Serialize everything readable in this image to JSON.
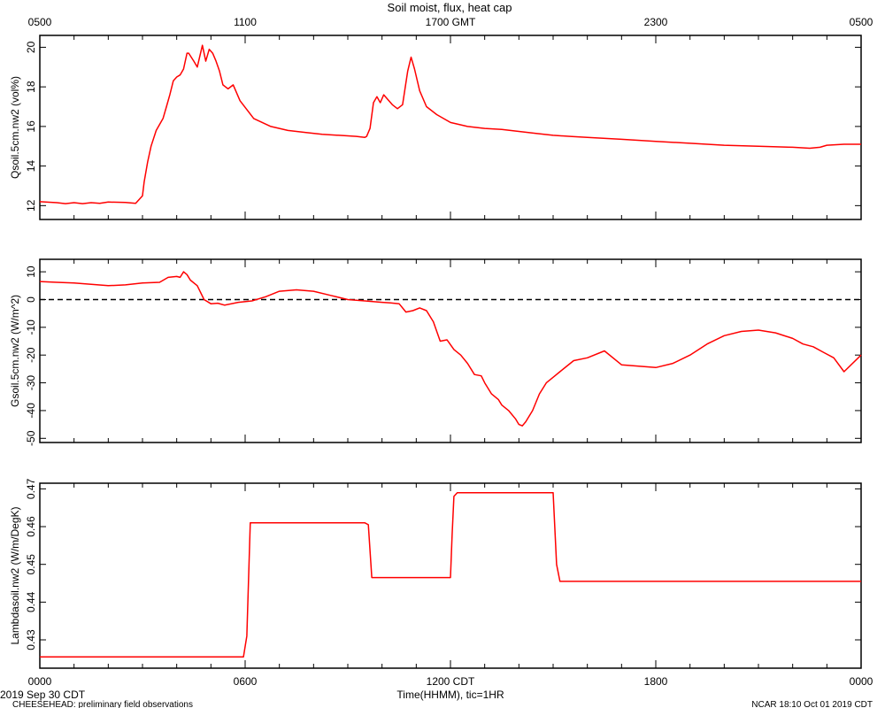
{
  "figure": {
    "title": "Soil moist, flux, heat cap",
    "top_axis_unit": "GMT",
    "xlabel": "Time(HHMM), tic=1HR",
    "date_label": "2019 Sep 30 CDT",
    "footer_left": "CHEESEHEAD: preliminary field observations",
    "footer_right": "NCAR 18:10 Oct 01 2019 CDT",
    "top_tick_labels": [
      "0500",
      "1100",
      "1700 GMT",
      "2300",
      "0500"
    ],
    "bottom_tick_labels": [
      "0000",
      "0600",
      "1200 CDT",
      "1800",
      "0000"
    ],
    "line_color": "#ff0000"
  },
  "chart_data": [
    {
      "type": "line",
      "ylabel": "Qsoil.5cm.nw2 (vol%)",
      "xlim": [
        0,
        24
      ],
      "ylim": [
        11.3,
        20.6
      ],
      "yticks": [
        12,
        14,
        16,
        18,
        20
      ],
      "yticklabels": [
        "12",
        "14",
        "16",
        "18",
        "20"
      ],
      "zero_line": false,
      "x": [
        0,
        0.5,
        0.75,
        1.0,
        1.25,
        1.5,
        1.75,
        2.0,
        2.5,
        2.8,
        3.0,
        3.05,
        3.15,
        3.25,
        3.4,
        3.6,
        3.7,
        3.8,
        3.9,
        4.0,
        4.1,
        4.2,
        4.3,
        4.35,
        4.5,
        4.6,
        4.75,
        4.85,
        4.95,
        5.05,
        5.15,
        5.25,
        5.35,
        5.5,
        5.65,
        5.85,
        6.25,
        6.75,
        7.25,
        7.75,
        8.25,
        8.75,
        9.25,
        9.5,
        9.55,
        9.65,
        9.75,
        9.85,
        9.95,
        10.05,
        10.15,
        10.3,
        10.45,
        10.6,
        10.75,
        10.85,
        10.95,
        11.1,
        11.3,
        11.6,
        12.0,
        12.5,
        13.0,
        13.5,
        14.0,
        14.5,
        15.0,
        15.5,
        16.0,
        17.0,
        18.0,
        19.0,
        20.0,
        21.0,
        22.0,
        22.5,
        22.8,
        23.0,
        23.5,
        24.0
      ],
      "values": [
        12.2,
        12.15,
        12.1,
        12.15,
        12.1,
        12.15,
        12.12,
        12.18,
        12.16,
        12.12,
        12.5,
        13.2,
        14.2,
        15.0,
        15.8,
        16.4,
        17.0,
        17.6,
        18.3,
        18.5,
        18.6,
        18.9,
        19.7,
        19.7,
        19.3,
        19.0,
        20.1,
        19.3,
        19.9,
        19.7,
        19.3,
        18.8,
        18.1,
        17.9,
        18.1,
        17.3,
        16.4,
        16.0,
        15.8,
        15.7,
        15.6,
        15.55,
        15.5,
        15.45,
        15.5,
        15.9,
        17.2,
        17.5,
        17.2,
        17.6,
        17.4,
        17.1,
        16.9,
        17.1,
        18.8,
        19.5,
        18.9,
        17.8,
        17.0,
        16.6,
        16.2,
        16.0,
        15.9,
        15.85,
        15.75,
        15.65,
        15.55,
        15.5,
        15.45,
        15.35,
        15.25,
        15.15,
        15.05,
        15.0,
        14.95,
        14.9,
        14.95,
        15.05,
        15.1,
        15.1
      ]
    },
    {
      "type": "line",
      "ylabel": "Gsoil.5cm.nw2 (W/m^2)",
      "xlim": [
        0,
        24
      ],
      "ylim": [
        -51.5,
        14.5
      ],
      "yticks": [
        10,
        0,
        -10,
        -20,
        -30,
        -40,
        -50
      ],
      "yticklabels": [
        "10",
        "0",
        "-10",
        "-20",
        "-30",
        "-40",
        "-50"
      ],
      "zero_line": true,
      "x": [
        0,
        0.5,
        1.0,
        1.5,
        2.0,
        2.5,
        3.0,
        3.5,
        3.75,
        4.0,
        4.1,
        4.2,
        4.3,
        4.4,
        4.6,
        4.8,
        5.0,
        5.2,
        5.4,
        5.8,
        6.2,
        6.6,
        7.0,
        7.5,
        8.0,
        8.5,
        9.0,
        9.5,
        10.0,
        10.25,
        10.5,
        10.7,
        10.9,
        11.1,
        11.3,
        11.5,
        11.7,
        11.9,
        12.1,
        12.3,
        12.5,
        12.7,
        12.9,
        13.0,
        13.2,
        13.4,
        13.5,
        13.7,
        13.9,
        14.0,
        14.1,
        14.2,
        14.4,
        14.6,
        14.8,
        15.0,
        15.2,
        15.6,
        16.0,
        16.5,
        17.0,
        17.5,
        18.0,
        18.5,
        19.0,
        19.5,
        20.0,
        20.5,
        21.0,
        21.5,
        22.0,
        22.3,
        22.6,
        22.9,
        23.2,
        23.5,
        24.0
      ],
      "values": [
        6.5,
        6.2,
        6.0,
        5.5,
        5.0,
        5.3,
        6.0,
        6.2,
        8.0,
        8.3,
        8.0,
        10.0,
        9.0,
        7.0,
        5.0,
        0.0,
        -1.5,
        -1.3,
        -2.0,
        -1.0,
        -0.5,
        1.0,
        3.0,
        3.5,
        3.0,
        1.5,
        0.0,
        -0.5,
        -1.0,
        -1.2,
        -1.5,
        -4.5,
        -4.0,
        -3.0,
        -4.0,
        -8.0,
        -15.0,
        -14.5,
        -18.0,
        -20.0,
        -23.0,
        -27.0,
        -27.5,
        -30.0,
        -34.0,
        -36.0,
        -38.0,
        -40.0,
        -43.0,
        -45.0,
        -45.5,
        -44.0,
        -40.0,
        -34.0,
        -30.0,
        -28.0,
        -26.0,
        -22.0,
        -21.0,
        -18.5,
        -23.5,
        -24.0,
        -24.5,
        -23.0,
        -20.0,
        -16.0,
        -13.0,
        -11.5,
        -11.0,
        -12.0,
        -14.0,
        -16.0,
        -17.0,
        -19.0,
        -21.0,
        -26.0,
        -20.0
      ]
    },
    {
      "type": "line",
      "ylabel": "Lambdasoil.nw2 (W/m/DegK)",
      "xlim": [
        0,
        24
      ],
      "ylim": [
        0.4225,
        0.4715
      ],
      "yticks": [
        0.43,
        0.44,
        0.45,
        0.46,
        0.47
      ],
      "yticklabels": [
        "0.43",
        "0.44",
        "0.45",
        "0.46",
        "0.47"
      ],
      "zero_line": false,
      "x": [
        0,
        5.95,
        6.05,
        6.15,
        9.5,
        9.6,
        9.7,
        12.0,
        12.05,
        12.1,
        12.2,
        15.0,
        15.1,
        15.2,
        24.0
      ],
      "values": [
        0.4255,
        0.4255,
        0.431,
        0.461,
        0.461,
        0.4605,
        0.4465,
        0.4465,
        0.458,
        0.468,
        0.469,
        0.469,
        0.45,
        0.4455,
        0.4455
      ]
    }
  ]
}
